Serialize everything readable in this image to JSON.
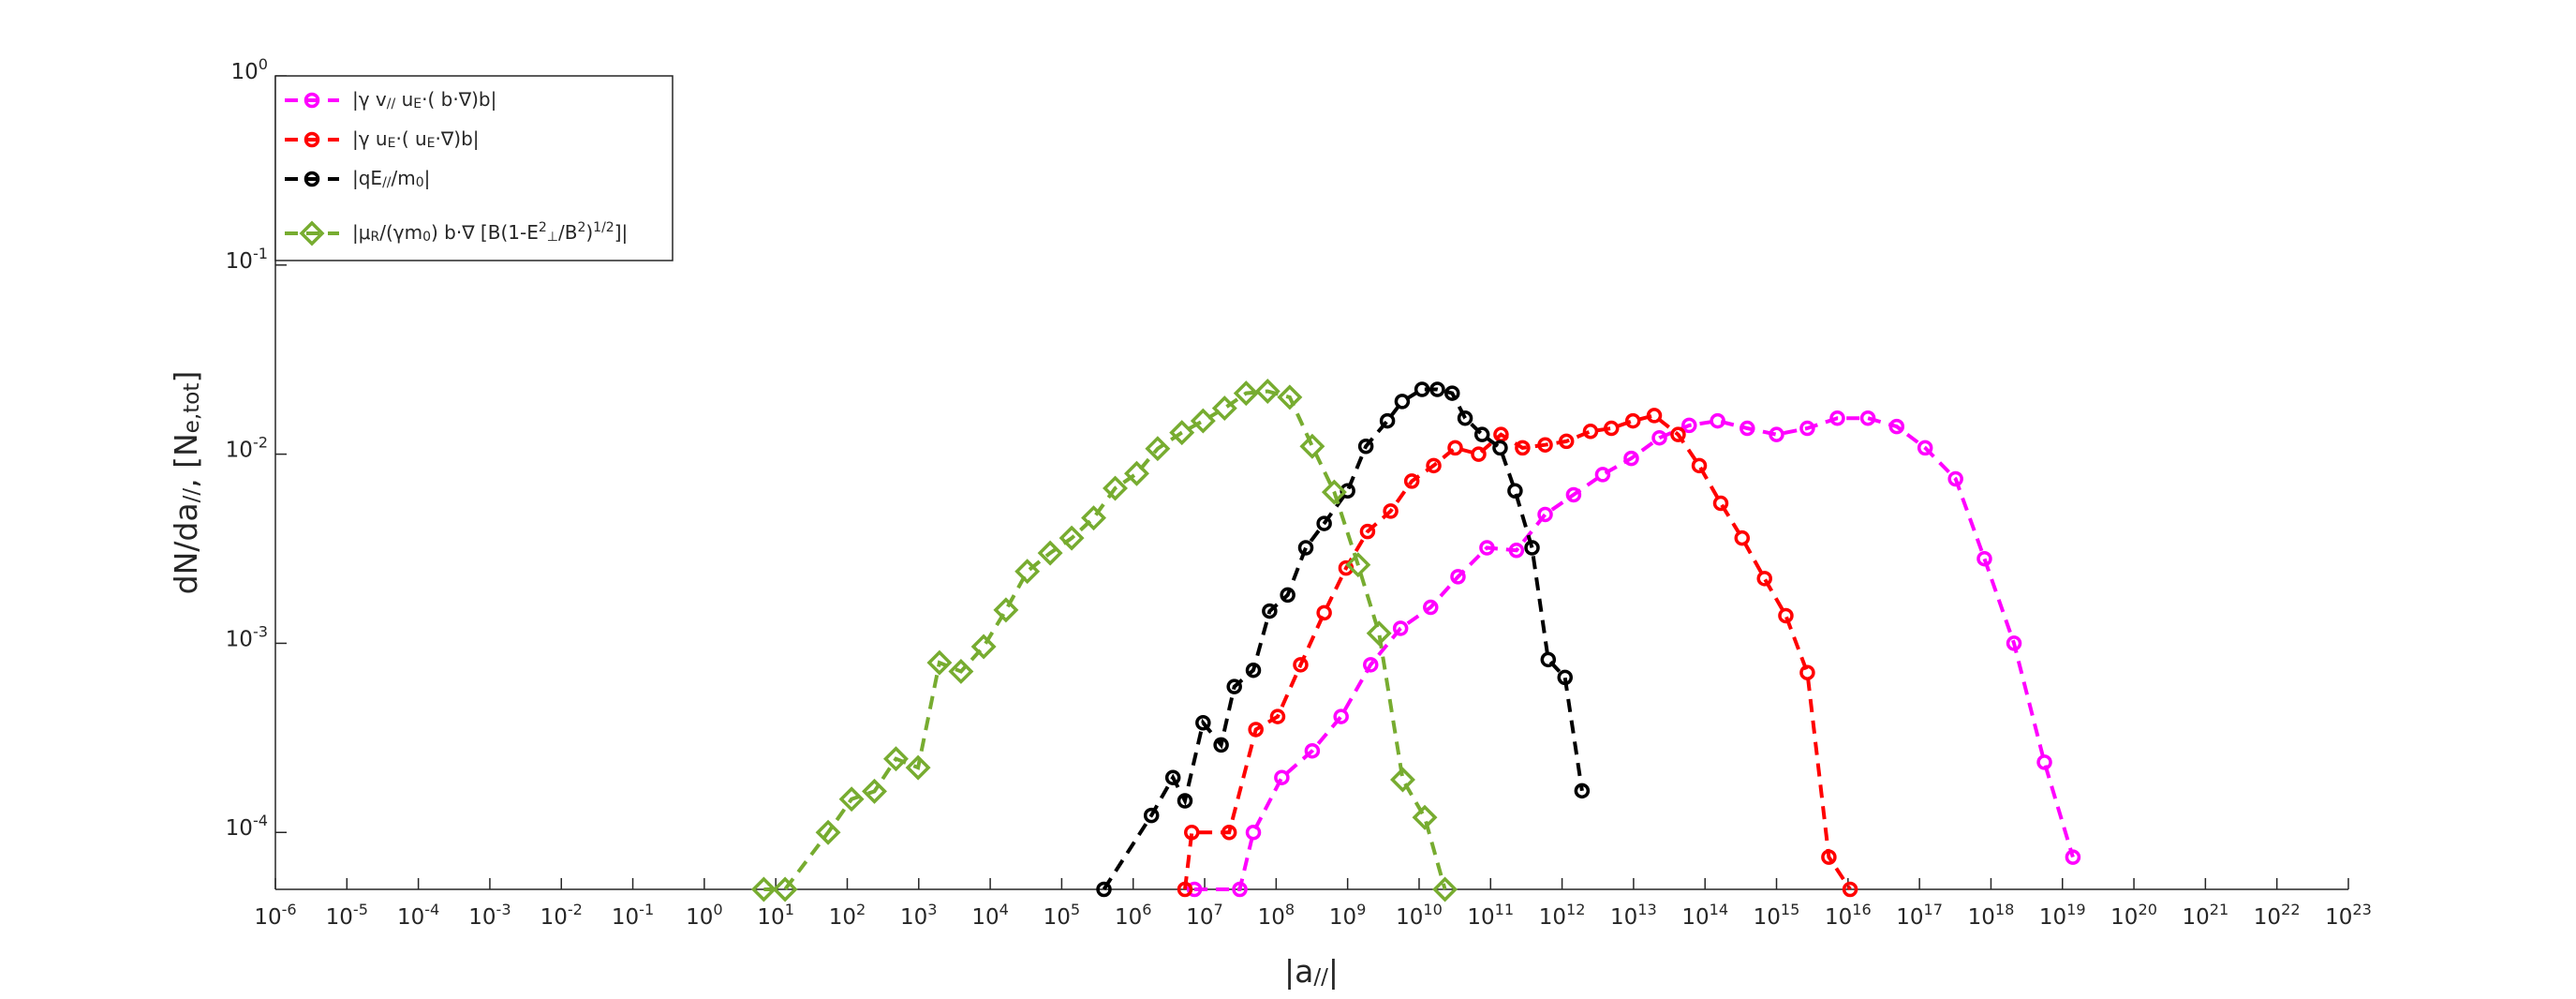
{
  "chart_data": {
    "type": "line",
    "x_label": "|a_{//}|",
    "y_label": "dN/da_{//}, [N_{e,tot}]",
    "xscale": "log",
    "yscale": "log",
    "xlim": [
      1e-06,
      1e+23
    ],
    "ylim": [
      5e-05,
      1
    ],
    "xticks": [
      {
        "value": 1e-06,
        "label": "10^{-6}"
      },
      {
        "value": 1e-05,
        "label": "10^{-5}"
      },
      {
        "value": 0.0001,
        "label": "10^{-4}"
      },
      {
        "value": 0.001,
        "label": "10^{-3}"
      },
      {
        "value": 0.01,
        "label": "10^{-2}"
      },
      {
        "value": 0.1,
        "label": "10^{-1}"
      },
      {
        "value": 1,
        "label": "10^{0}"
      },
      {
        "value": 10.0,
        "label": "10^{1}"
      },
      {
        "value": 100.0,
        "label": "10^{2}"
      },
      {
        "value": 1000.0,
        "label": "10^{3}"
      },
      {
        "value": 10000.0,
        "label": "10^{4}"
      },
      {
        "value": 100000.0,
        "label": "10^{5}"
      },
      {
        "value": 1000000.0,
        "label": "10^{6}"
      },
      {
        "value": 10000000.0,
        "label": "10^{7}"
      },
      {
        "value": 100000000.0,
        "label": "10^{8}"
      },
      {
        "value": 1000000000.0,
        "label": "10^{9}"
      },
      {
        "value": 10000000000.0,
        "label": "10^{10}"
      },
      {
        "value": 100000000000.0,
        "label": "10^{11}"
      },
      {
        "value": 1000000000000.0,
        "label": "10^{12}"
      },
      {
        "value": 10000000000000.0,
        "label": "10^{13}"
      },
      {
        "value": 100000000000000.0,
        "label": "10^{14}"
      },
      {
        "value": 1000000000000000.0,
        "label": "10^{15}"
      },
      {
        "value": 1e+16,
        "label": "10^{16}"
      },
      {
        "value": 1e+17,
        "label": "10^{17}"
      },
      {
        "value": 1e+18,
        "label": "10^{18}"
      },
      {
        "value": 1e+19,
        "label": "10^{19}"
      },
      {
        "value": 1e+20,
        "label": "10^{20}"
      },
      {
        "value": 1e+21,
        "label": "10^{21}"
      },
      {
        "value": 1e+22,
        "label": "10^{22}"
      },
      {
        "value": 1e+23,
        "label": "10^{23}"
      }
    ],
    "yticks": [
      {
        "value": 0.0001,
        "label": "10^{-4}"
      },
      {
        "value": 0.001,
        "label": "10^{-3}"
      },
      {
        "value": 0.01,
        "label": "10^{-2}"
      },
      {
        "value": 0.1,
        "label": "10^{-1}"
      },
      {
        "value": 1,
        "label": "10^{0}"
      }
    ],
    "legend": "northwest",
    "series": [
      {
        "name": "|γ v_{//} u_{E}·( b·∇)b|",
        "color": "#ff00ff",
        "marker": "circle",
        "x": [
          7200000.0,
          31000000.0,
          48000000.0,
          120000000.0,
          320000000.0,
          810000000.0,
          2100000000.0,
          5500000000.0,
          14500000000.0,
          35000000000.0,
          89000000000.0,
          230000000000.0,
          580000000000.0,
          1450000000000.0,
          3700000000000.0,
          9300000000000.0,
          23000000000000.0,
          60000000000000.0,
          150000000000000.0,
          390000000000000.0,
          1000000000000000.0,
          2700000000000000.0,
          7100000000000000.0,
          1.9e+16,
          4.8e+16,
          1.2e+17,
          3.2e+17,
          8.1e+17,
          2.1e+18,
          5.6e+18,
          1.4e+19
        ],
        "values": [
          5e-05,
          5e-05,
          0.0001,
          0.000195,
          0.00027,
          0.00041,
          0.00077,
          0.0012,
          0.00155,
          0.00225,
          0.0032,
          0.0031,
          0.0048,
          0.0061,
          0.0078,
          0.0095,
          0.0122,
          0.0142,
          0.015,
          0.0137,
          0.0127,
          0.0137,
          0.0155,
          0.0155,
          0.014,
          0.0108,
          0.0074,
          0.0028,
          0.001,
          0.000235,
          7.4e-05
        ]
      },
      {
        "name": "|γ u_{E}·( u_{E}·∇)b|",
        "color": "#ff0000",
        "marker": "circle",
        "x": [
          5300000.0,
          6600000.0,
          22000000.0,
          52000000.0,
          105000000.0,
          220000000.0,
          470000000.0,
          950000000.0,
          1900000000.0,
          4000000000.0,
          7900000000.0,
          16000000000.0,
          32000000000.0,
          68000000000.0,
          140000000000.0,
          280000000000.0,
          580000000000.0,
          1150000000000.0,
          2500000000000.0,
          4900000000000.0,
          9800000000000.0,
          19500000000000.0,
          42000000000000.0,
          83000000000000.0,
          166000000000000.0,
          330000000000000.0,
          680000000000000.0,
          1350000000000000.0,
          2700000000000000.0,
          5400000000000000.0,
          1.07e+16
        ],
        "values": [
          5e-05,
          0.0001,
          0.0001,
          0.00035,
          0.00041,
          0.00077,
          0.00145,
          0.0025,
          0.0039,
          0.005,
          0.0072,
          0.0087,
          0.0108,
          0.01,
          0.0127,
          0.0108,
          0.0112,
          0.0117,
          0.0132,
          0.0137,
          0.015,
          0.016,
          0.0127,
          0.0087,
          0.0055,
          0.0036,
          0.0022,
          0.0014,
          0.0007,
          7.4e-05,
          5e-05
        ]
      },
      {
        "name": "|qE_{//}/m_{0}|",
        "color": "#000000",
        "marker": "circle",
        "x": [
          390000.0,
          1800000.0,
          3600000.0,
          5300000.0,
          9500000.0,
          17000000.0,
          26000000.0,
          48000000.0,
          81000000.0,
          145000000.0,
          260000000.0,
          470000000.0,
          1000000000.0,
          1800000000.0,
          3600000000.0,
          5800000000.0,
          11000000000.0,
          18000000000.0,
          29000000000.0,
          44000000000.0,
          76000000000.0,
          136000000000.0,
          220000000000.0,
          380000000000.0,
          640000000000.0,
          1100000000000.0,
          1900000000000.0
        ],
        "values": [
          5e-05,
          0.000123,
          0.000195,
          0.000147,
          0.00038,
          0.00029,
          0.00059,
          0.00072,
          0.00148,
          0.0018,
          0.0032,
          0.0043,
          0.0064,
          0.011,
          0.015,
          0.019,
          0.022,
          0.022,
          0.021,
          0.0155,
          0.0127,
          0.0108,
          0.0064,
          0.0032,
          0.00082,
          0.00066,
          0.000166
        ]
      },
      {
        "name": "|μ_{R}/(γm_{0}) b·∇ [B(1-E^{2}_{⊥}/B^{2})^{1/2}]|",
        "color": "#77ac30",
        "marker": "diamond",
        "x": [
          6.8,
          13.5,
          54,
          115,
          240,
          480,
          980,
          1950,
          3900,
          8100,
          16600.0,
          33000.0,
          69000.0,
          138000.0,
          280000.0,
          560000.0,
          1120000.0,
          2200000.0,
          4800000.0,
          9500000.0,
          19000000.0,
          38000000.0,
          76000000.0,
          155000000.0,
          320000000.0,
          650000000.0,
          1400000000.0,
          2750000000.0,
          5900000000.0,
          12000000000.0,
          23000000000.0
        ],
        "values": [
          5e-05,
          5e-05,
          0.0001,
          0.00015,
          0.000165,
          0.000245,
          0.00022,
          0.00079,
          0.00071,
          0.00096,
          0.0015,
          0.0024,
          0.003,
          0.0036,
          0.0046,
          0.0066,
          0.0079,
          0.0107,
          0.013,
          0.015,
          0.0175,
          0.021,
          0.0215,
          0.02,
          0.011,
          0.0063,
          0.0026,
          0.00113,
          0.00019,
          0.00012,
          5e-05
        ]
      }
    ]
  }
}
